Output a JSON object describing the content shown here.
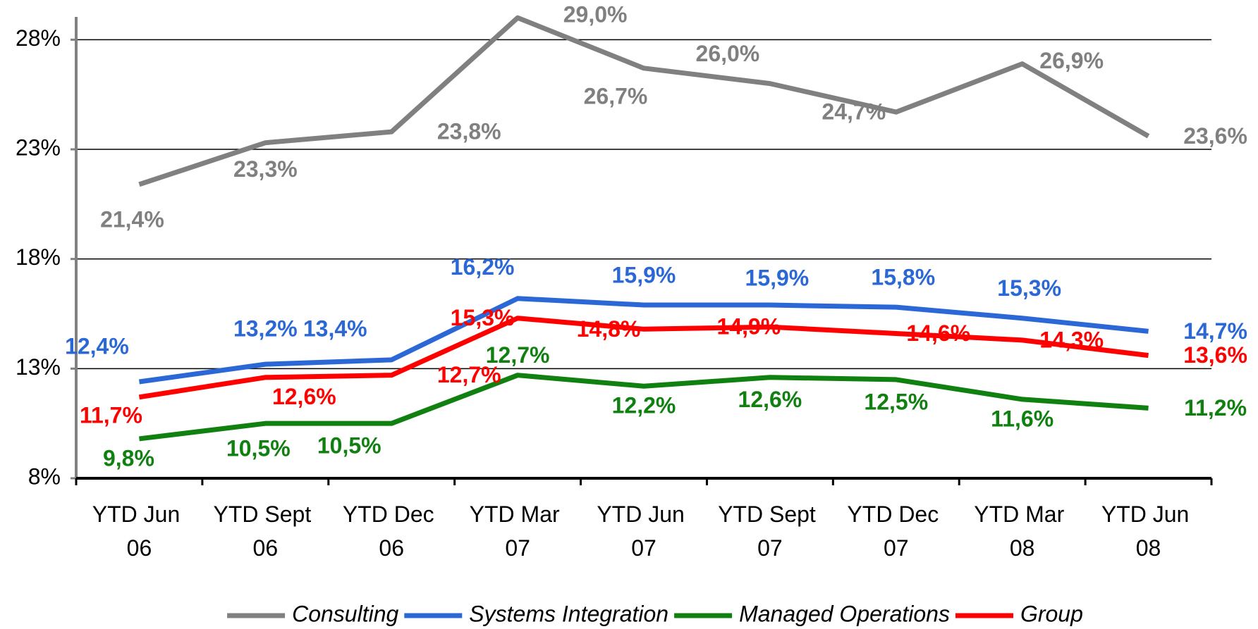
{
  "chart_data": {
    "type": "line",
    "categories": [
      "YTD Jun 06",
      "YTD Sept 06",
      "YTD Dec 06",
      "YTD Mar 07",
      "YTD Jun 07",
      "YTD Sept 07",
      "YTD Dec 07",
      "YTD Mar 08",
      "YTD Jun 08"
    ],
    "series": [
      {
        "name": "Consulting",
        "color": "#808080",
        "values": [
          21.4,
          23.3,
          23.8,
          29.0,
          26.7,
          26.0,
          24.7,
          26.9,
          23.6
        ],
        "value_labels": [
          "21,4%",
          "23,3%",
          "23,8%",
          "29,0%",
          "26,7%",
          "26,0%",
          "24,7%",
          "26,9%",
          "23,6%"
        ]
      },
      {
        "name": "Systems Integration",
        "color": "#2b68d6",
        "values": [
          12.4,
          13.2,
          13.4,
          16.2,
          15.9,
          15.9,
          15.8,
          15.3,
          14.7
        ],
        "value_labels": [
          "12,4%",
          "13,2%",
          "13,4%",
          "16,2%",
          "15,9%",
          "15,9%",
          "15,8%",
          "15,3%",
          "14,7%"
        ]
      },
      {
        "name": "Managed Operations",
        "color": "#108010",
        "values": [
          9.8,
          10.5,
          10.5,
          12.7,
          12.2,
          12.6,
          12.5,
          11.6,
          11.2
        ],
        "value_labels": [
          "9,8%",
          "10,5%",
          "10,5%",
          "12,7%",
          "12,2%",
          "12,6%",
          "12,5%",
          "11,6%",
          "11,2%"
        ]
      },
      {
        "name": "Group",
        "color": "#ff0000",
        "values": [
          11.7,
          12.6,
          12.7,
          15.3,
          14.8,
          14.9,
          14.6,
          14.3,
          13.6
        ],
        "value_labels": [
          "11,7%",
          "12,6%",
          "12,7%",
          "15,3%",
          "14,8%",
          "14,9%",
          "14,6%",
          "14,3%",
          "13,6%"
        ]
      }
    ],
    "ylim": [
      8,
      29.2
    ],
    "yticks": [
      {
        "value": 8,
        "label": "8%"
      },
      {
        "value": 13,
        "label": "13%"
      },
      {
        "value": 18,
        "label": "18%"
      },
      {
        "value": 23,
        "label": "23%"
      },
      {
        "value": 28,
        "label": "28%"
      }
    ],
    "grid": true,
    "legend": "bottom"
  }
}
